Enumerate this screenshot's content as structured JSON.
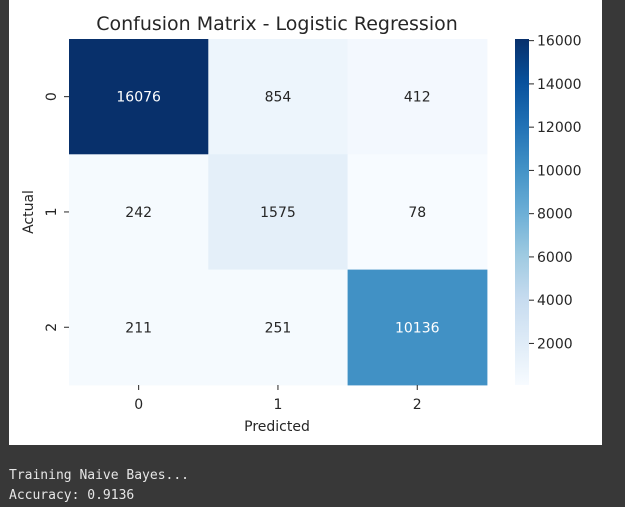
{
  "chart_data": {
    "type": "heatmap",
    "title": "Confusion Matrix - Logistic Regression",
    "xlabel": "Predicted",
    "ylabel": "Actual",
    "x_categories": [
      "0",
      "1",
      "2"
    ],
    "y_categories": [
      "0",
      "1",
      "2"
    ],
    "values": [
      [
        16076,
        854,
        412
      ],
      [
        242,
        1575,
        78
      ],
      [
        211,
        251,
        10136
      ]
    ],
    "colormap": "Blues",
    "colorbar": {
      "range": [
        78,
        16076
      ],
      "ticks": [
        2000,
        4000,
        6000,
        8000,
        10000,
        12000,
        14000,
        16000
      ],
      "tick_labels": [
        "2000",
        "4000",
        "6000",
        "8000",
        "10000",
        "12000",
        "14000",
        "16000"
      ]
    }
  },
  "console": {
    "lines": [
      "Training Naive Bayes...",
      "Accuracy: 0.9136"
    ]
  }
}
